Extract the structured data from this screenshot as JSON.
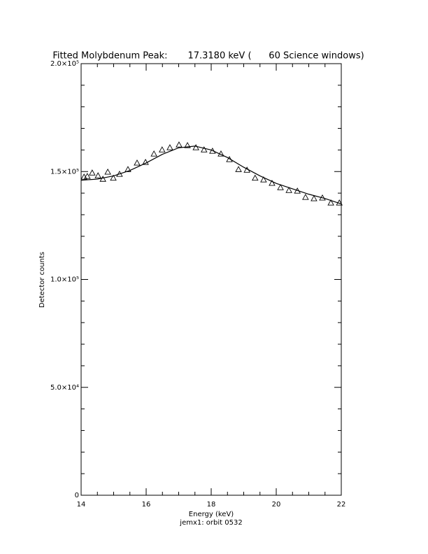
{
  "chart_data": {
    "type": "scatter",
    "title": "Fitted Molybdenum Peak:       17.3180 keV (      60 Science windows)",
    "xlabel": "Energy (keV)",
    "subtitle": "jemx1: orbit 0532",
    "ylabel": "Detector counts",
    "xlim": [
      14,
      22
    ],
    "xticks": [
      14,
      16,
      18,
      20,
      22
    ],
    "xticks_minor": [
      14.5,
      15,
      15.5,
      16.5,
      17,
      17.5,
      18.5,
      19,
      19.5,
      20.5,
      21,
      21.5
    ],
    "ylim": [
      0,
      200000
    ],
    "yticks": [
      {
        "value": 0,
        "label": "0"
      },
      {
        "value": 50000,
        "label": "5.0×10⁴"
      },
      {
        "value": 100000,
        "label": "1.0×10⁵"
      },
      {
        "value": 150000,
        "label": "1.5×10⁵"
      },
      {
        "value": 200000,
        "label": "2.0×10⁵"
      }
    ],
    "yticks_minor": [
      10000,
      20000,
      30000,
      40000,
      60000,
      70000,
      80000,
      90000,
      110000,
      120000,
      130000,
      140000,
      160000,
      170000,
      180000,
      190000
    ],
    "color": "#000000",
    "x": [
      14.09,
      14.19,
      14.34,
      14.52,
      14.67,
      14.82,
      14.99,
      15.18,
      15.44,
      15.72,
      15.98,
      16.24,
      16.49,
      16.73,
      17.01,
      17.27,
      17.53,
      17.78,
      18.04,
      18.3,
      18.56,
      18.84,
      19.1,
      19.35,
      19.61,
      19.87,
      20.13,
      20.39,
      20.65,
      20.9,
      21.16,
      21.42,
      21.68,
      21.94
    ],
    "values": [
      147500,
      147800,
      149400,
      148100,
      146500,
      149800,
      147000,
      148800,
      151000,
      154000,
      154300,
      158200,
      160100,
      161100,
      162400,
      162100,
      161100,
      160100,
      159500,
      158200,
      155600,
      151000,
      150700,
      147000,
      146200,
      144600,
      142600,
      141300,
      141000,
      138100,
      137500,
      137800,
      135500,
      135500
    ],
    "fit": {
      "x": [
        14,
        14.5,
        15,
        15.5,
        16,
        16.5,
        17,
        17.5,
        18,
        18.5,
        19,
        19.5,
        20,
        20.5,
        21,
        21.5,
        22
      ],
      "values": [
        146000,
        146500,
        148000,
        150500,
        154000,
        158000,
        161000,
        161800,
        160000,
        156500,
        152000,
        148000,
        144500,
        142000,
        139500,
        137500,
        135000
      ]
    }
  }
}
